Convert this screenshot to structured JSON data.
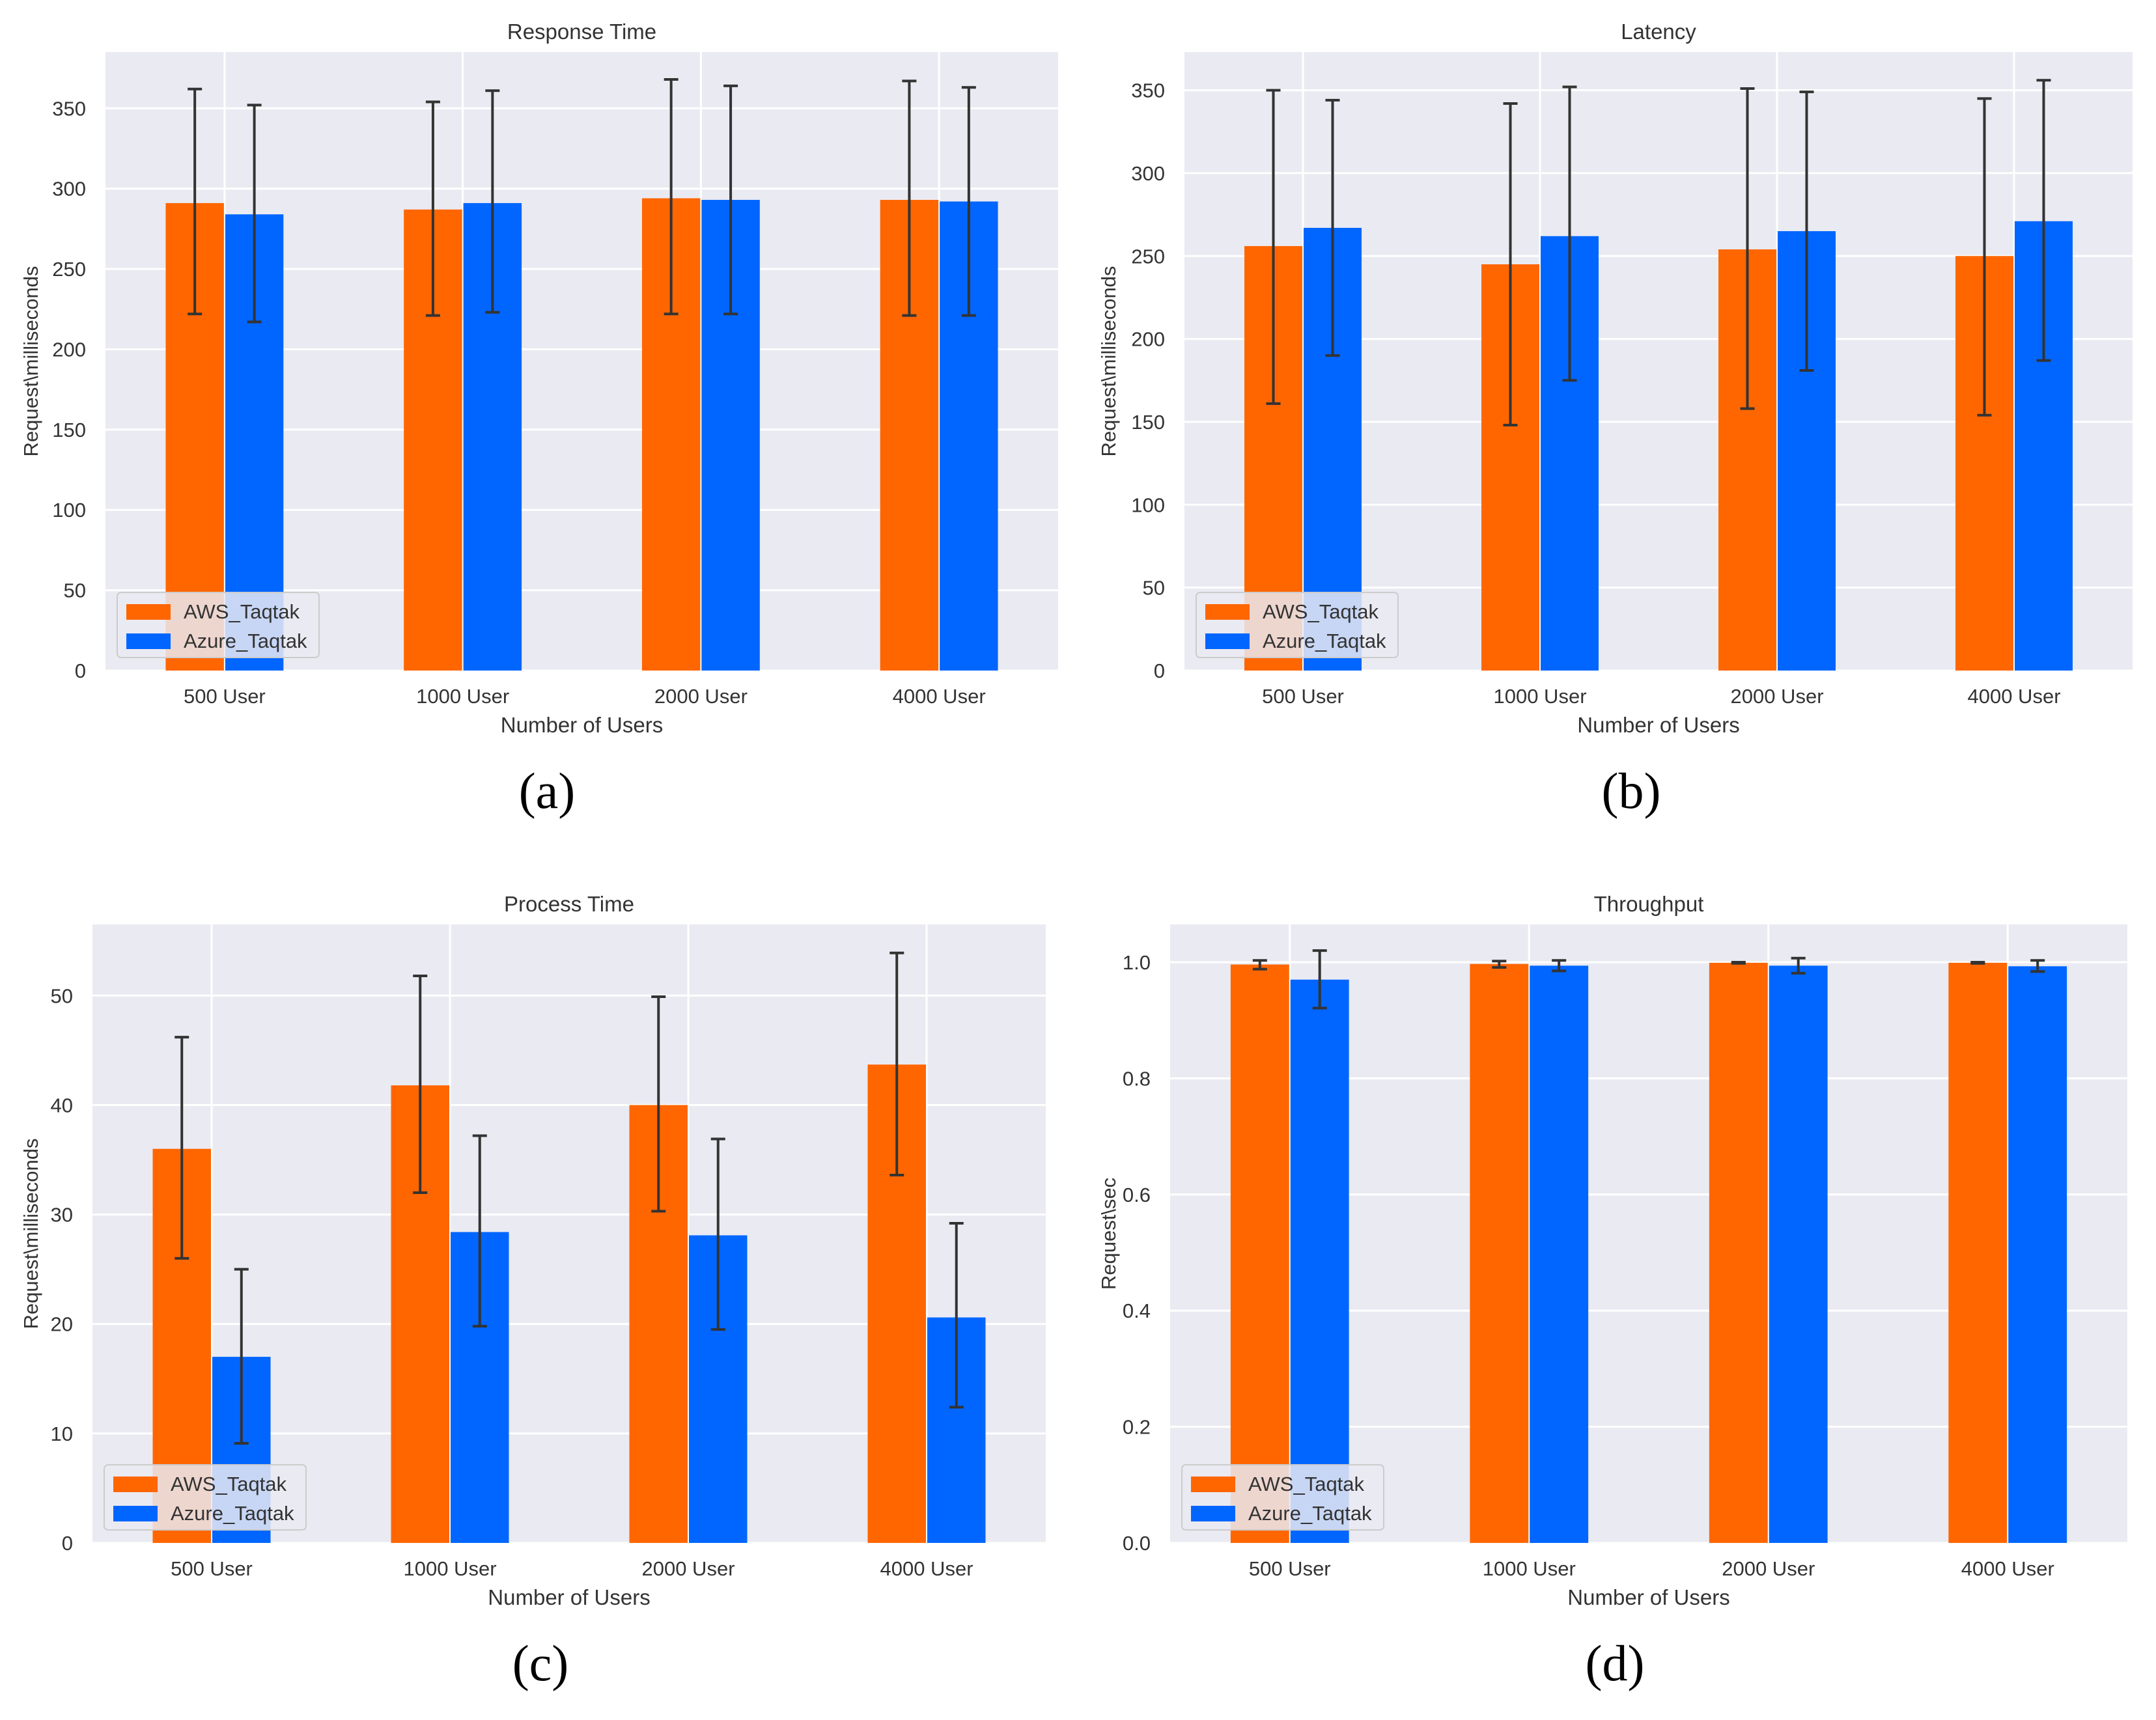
{
  "colors": {
    "aws": "#ff6600",
    "azure": "#0066ff",
    "plot_bg": "#eaeaf2",
    "grid": "#ffffff",
    "err": "#333333"
  },
  "chart_data": [
    {
      "type": "bar",
      "title": "Response Time",
      "xlabel": "Number of Users",
      "ylabel": "Request\\milliseconds",
      "categories": [
        "500 User",
        "1000 User",
        "2000 User",
        "4000 User"
      ],
      "ylim": [
        0,
        385
      ],
      "yticks": [
        0,
        50,
        100,
        150,
        200,
        250,
        300,
        350
      ],
      "legend": "lower-left",
      "series": [
        {
          "name": "AWS_Taqtak",
          "values": [
            291,
            287,
            294,
            293
          ],
          "err_low": [
            222,
            221,
            222,
            221
          ],
          "err_high": [
            362,
            354,
            368,
            367
          ]
        },
        {
          "name": "Azure_Taqtak",
          "values": [
            284,
            291,
            293,
            292
          ],
          "err_low": [
            217,
            223,
            222,
            221
          ],
          "err_high": [
            352,
            361,
            364,
            363
          ]
        }
      ],
      "panel_label": "(a)"
    },
    {
      "type": "bar",
      "title": "Latency",
      "xlabel": "Number of Users",
      "ylabel": "Request\\milliseconds",
      "categories": [
        "500 User",
        "1000 User",
        "2000 User",
        "4000 User"
      ],
      "ylim": [
        0,
        373
      ],
      "yticks": [
        0,
        50,
        100,
        150,
        200,
        250,
        300,
        350
      ],
      "legend": "lower-left",
      "series": [
        {
          "name": "AWS_Taqtak",
          "values": [
            256,
            245,
            254,
            250
          ],
          "err_low": [
            161,
            148,
            158,
            154
          ],
          "err_high": [
            350,
            342,
            351,
            345
          ]
        },
        {
          "name": "Azure_Taqtak",
          "values": [
            267,
            262,
            265,
            271
          ],
          "err_low": [
            190,
            175,
            181,
            187
          ],
          "err_high": [
            344,
            352,
            349,
            356
          ]
        }
      ],
      "panel_label": "(b)"
    },
    {
      "type": "bar",
      "title": "Process Time",
      "xlabel": "Number of Users",
      "ylabel": "Request\\milliseconds",
      "categories": [
        "500 User",
        "1000 User",
        "2000 User",
        "4000 User"
      ],
      "ylim": [
        0,
        56.5
      ],
      "yticks": [
        0,
        10,
        20,
        30,
        40,
        50
      ],
      "legend": "lower-left",
      "series": [
        {
          "name": "AWS_Taqtak",
          "values": [
            36,
            41.8,
            40,
            43.7
          ],
          "err_low": [
            26,
            32,
            30.3,
            33.6
          ],
          "err_high": [
            46.2,
            51.8,
            49.9,
            53.9
          ]
        },
        {
          "name": "Azure_Taqtak",
          "values": [
            17,
            28.4,
            28.1,
            20.6
          ],
          "err_low": [
            9.1,
            19.8,
            19.5,
            12.4
          ],
          "err_high": [
            25,
            37.2,
            36.9,
            29.2
          ]
        }
      ],
      "panel_label": "(c)"
    },
    {
      "type": "bar",
      "title": "Throughput",
      "xlabel": "Number of Users",
      "ylabel": "Request\\sec",
      "categories": [
        "500 User",
        "1000 User",
        "2000 User",
        "4000 User"
      ],
      "ylim": [
        0,
        1.065
      ],
      "yticks": [
        "0.0",
        "0.2",
        "0.4",
        "0.6",
        "0.8",
        "1.0"
      ],
      "legend": "lower-left",
      "series": [
        {
          "name": "AWS_Taqtak",
          "values": [
            0.996,
            0.997,
            0.999,
            0.999
          ],
          "err_low": [
            0.988,
            0.991,
            0.998,
            0.998
          ],
          "err_high": [
            1.003,
            1.002,
            1.0,
            1.0
          ]
        },
        {
          "name": "Azure_Taqtak",
          "values": [
            0.97,
            0.994,
            0.994,
            0.993
          ],
          "err_low": [
            0.921,
            0.985,
            0.981,
            0.984
          ],
          "err_high": [
            1.02,
            1.003,
            1.007,
            1.003
          ]
        }
      ],
      "panel_label": "(d)"
    }
  ]
}
